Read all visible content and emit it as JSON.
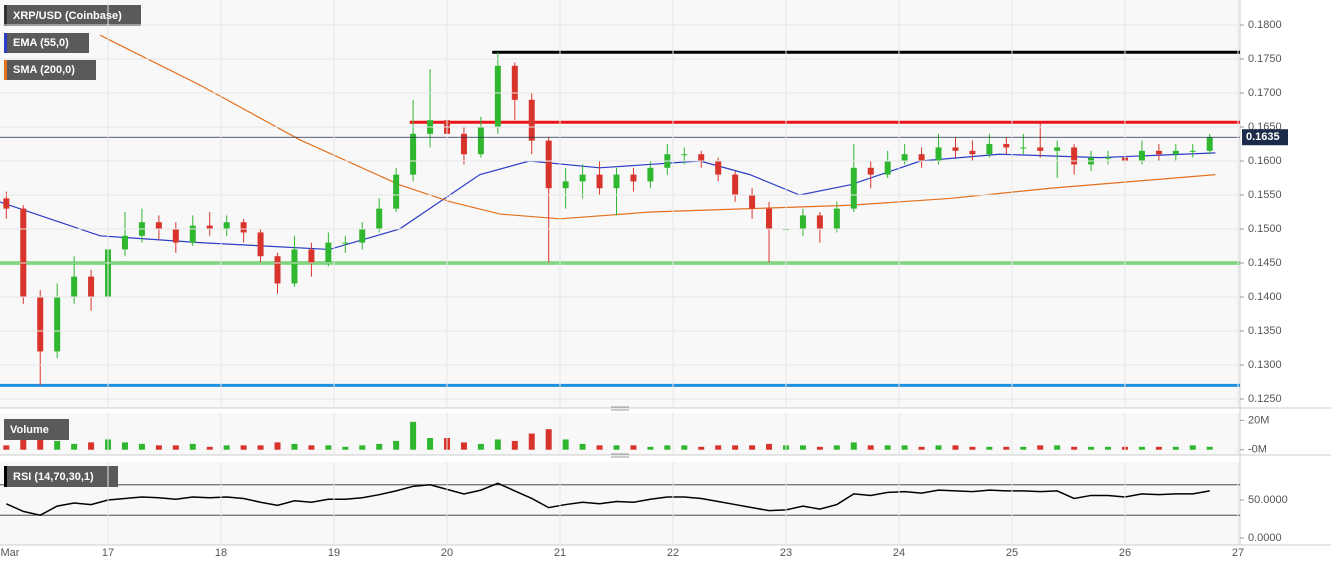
{
  "chart_data": [
    {
      "type": "candlestick",
      "title": "XRP/USD (Coinbase)",
      "x": [
        16.1,
        16.25,
        16.4,
        16.55,
        16.7,
        16.85,
        17.0,
        17.15,
        17.3,
        17.45,
        17.6,
        17.75,
        17.9,
        18.05,
        18.2,
        18.35,
        18.5,
        18.65,
        18.8,
        18.95,
        19.1,
        19.25,
        19.4,
        19.55,
        19.7,
        19.85,
        20.0,
        20.15,
        20.3,
        20.45,
        20.6,
        20.75,
        20.9,
        21.05,
        21.2,
        21.35,
        21.5,
        21.65,
        21.8,
        21.95,
        22.1,
        22.25,
        22.4,
        22.55,
        22.7,
        22.85,
        23.0,
        23.15,
        23.3,
        23.45,
        23.6,
        23.75,
        23.9,
        24.05,
        24.2,
        24.35,
        24.5,
        24.65,
        24.8,
        24.95,
        25.1,
        25.25,
        25.4,
        25.55,
        25.7,
        25.85,
        26.0,
        26.15,
        26.3,
        26.45,
        26.6,
        26.75
      ],
      "open": [
        0.1545,
        0.153,
        0.14,
        0.132,
        0.14,
        0.143,
        0.14,
        0.147,
        0.149,
        0.151,
        0.15,
        0.148,
        0.1505,
        0.15,
        0.151,
        0.1495,
        0.146,
        0.142,
        0.147,
        0.145,
        0.148,
        0.148,
        0.15,
        0.153,
        0.158,
        0.164,
        0.166,
        0.164,
        0.161,
        0.165,
        0.174,
        0.169,
        0.163,
        0.156,
        0.157,
        0.158,
        0.156,
        0.158,
        0.157,
        0.159,
        0.161,
        0.161,
        0.16,
        0.158,
        0.155,
        0.153,
        0.15,
        0.15,
        0.152,
        0.15,
        0.153,
        0.159,
        0.158,
        0.16,
        0.161,
        0.16,
        0.162,
        0.1615,
        0.161,
        0.1625,
        0.162,
        0.162,
        0.1615,
        0.162,
        0.1595,
        0.1605,
        0.1605,
        0.16,
        0.1615,
        0.161,
        0.1615,
        0.1615
      ],
      "high": [
        0.1555,
        0.1535,
        0.141,
        0.142,
        0.146,
        0.144,
        0.149,
        0.1525,
        0.153,
        0.152,
        0.151,
        0.152,
        0.1525,
        0.152,
        0.1515,
        0.15,
        0.1465,
        0.149,
        0.148,
        0.1495,
        0.149,
        0.151,
        0.1545,
        0.159,
        0.169,
        0.1735,
        0.168,
        0.165,
        0.1665,
        0.176,
        0.1745,
        0.17,
        0.1635,
        0.159,
        0.1595,
        0.16,
        0.159,
        0.159,
        0.16,
        0.1625,
        0.162,
        0.1615,
        0.1605,
        0.1585,
        0.156,
        0.154,
        0.1515,
        0.153,
        0.1525,
        0.154,
        0.1625,
        0.16,
        0.1615,
        0.1625,
        0.162,
        0.164,
        0.1635,
        0.163,
        0.164,
        0.1635,
        0.164,
        0.1655,
        0.163,
        0.1625,
        0.1615,
        0.1615,
        0.1612,
        0.163,
        0.1625,
        0.1625,
        0.1625,
        0.164
      ],
      "low": [
        0.1515,
        0.139,
        0.127,
        0.131,
        0.139,
        0.138,
        0.1395,
        0.146,
        0.148,
        0.1485,
        0.1465,
        0.1475,
        0.149,
        0.149,
        0.148,
        0.145,
        0.1405,
        0.1415,
        0.143,
        0.1445,
        0.1465,
        0.147,
        0.1495,
        0.1525,
        0.157,
        0.162,
        0.161,
        0.1595,
        0.1605,
        0.164,
        0.166,
        0.161,
        0.145,
        0.153,
        0.1545,
        0.155,
        0.152,
        0.1555,
        0.156,
        0.158,
        0.1595,
        0.159,
        0.157,
        0.154,
        0.1515,
        0.145,
        0.1485,
        0.149,
        0.148,
        0.1495,
        0.1525,
        0.156,
        0.1575,
        0.1595,
        0.159,
        0.1595,
        0.1605,
        0.16,
        0.1605,
        0.161,
        0.161,
        0.1605,
        0.1575,
        0.158,
        0.1585,
        0.1595,
        0.1585,
        0.1595,
        0.16,
        0.16,
        0.1605,
        0.161
      ],
      "close": [
        0.153,
        0.14,
        0.132,
        0.14,
        0.143,
        0.14,
        0.147,
        0.149,
        0.151,
        0.15,
        0.148,
        0.1505,
        0.15,
        0.151,
        0.1495,
        0.146,
        0.142,
        0.147,
        0.145,
        0.148,
        0.148,
        0.15,
        0.153,
        0.158,
        0.164,
        0.166,
        0.164,
        0.161,
        0.165,
        0.174,
        0.169,
        0.163,
        0.156,
        0.157,
        0.158,
        0.156,
        0.158,
        0.157,
        0.159,
        0.161,
        0.161,
        0.16,
        0.158,
        0.155,
        0.153,
        0.15,
        0.15,
        0.152,
        0.15,
        0.153,
        0.159,
        0.158,
        0.16,
        0.161,
        0.16,
        0.162,
        0.1615,
        0.161,
        0.1625,
        0.162,
        0.162,
        0.1615,
        0.162,
        0.1595,
        0.1605,
        0.1605,
        0.16,
        0.1615,
        0.161,
        0.1615,
        0.1615,
        0.1635
      ],
      "up_color": "#2fb82f",
      "down_color": "#d9342b",
      "series": [
        {
          "name": "EMA (55,0)",
          "color": "#2c3dc6",
          "x": [
            16.04,
            16.93,
            17.81,
            18.96,
            19.58,
            20.29,
            20.73,
            21.35,
            22.24,
            22.68,
            23.12,
            23.57,
            24.19,
            24.89,
            25.78,
            26.8
          ],
          "values": [
            0.154,
            0.149,
            0.148,
            0.147,
            0.15,
            0.158,
            0.16,
            0.159,
            0.16,
            0.158,
            0.155,
            0.1565,
            0.16,
            0.161,
            0.1605,
            0.1612
          ]
        },
        {
          "name": "SMA (200,0)",
          "color": "#e2701e",
          "x": [
            16.93,
            17.81,
            18.7,
            19.58,
            20.03,
            20.47,
            21.0,
            21.8,
            22.68,
            23.57,
            24.45,
            25.34,
            26.8
          ],
          "values": [
            0.1785,
            0.1712,
            0.1631,
            0.1565,
            0.154,
            0.1522,
            0.1515,
            0.1525,
            0.153,
            0.1535,
            0.1545,
            0.156,
            0.158
          ]
        }
      ],
      "levels": [
        {
          "value": 0.176,
          "color": "#000000",
          "from": 20.4
        },
        {
          "value": 0.1657,
          "color": "#e8161b",
          "from": 19.67
        },
        {
          "value": 0.145,
          "color": "#22c322"
        },
        {
          "value": 0.127,
          "color": "#1e90e0"
        }
      ],
      "last_price": {
        "value": 0.1635,
        "label": "0.1635"
      },
      "xlim": [
        16.044,
        27.018
      ],
      "ylim": [
        0.12368,
        0.18368
      ],
      "xticks": [
        {
          "value": 16,
          "label": "Mar"
        },
        17,
        18,
        19,
        20,
        21,
        22,
        23,
        24,
        25,
        26,
        27
      ],
      "yticks": [
        {
          "value": 0.125,
          "label": "0.1250"
        },
        {
          "value": 0.13,
          "label": "0.1300"
        },
        {
          "value": 0.135,
          "label": "0.1350"
        },
        {
          "value": 0.14,
          "label": "0.1400"
        },
        {
          "value": 0.145,
          "label": "0.1450"
        },
        {
          "value": 0.15,
          "label": "0.1500"
        },
        {
          "value": 0.155,
          "label": "0.1550"
        },
        {
          "value": 0.16,
          "label": "0.1600"
        },
        {
          "value": 0.165,
          "label": "0.1650"
        },
        {
          "value": 0.17,
          "label": "0.1700"
        },
        {
          "value": 0.175,
          "label": "0.1750"
        },
        {
          "value": 0.18,
          "label": "0.1800"
        }
      ],
      "grid": true
    },
    {
      "type": "bar",
      "title": "Volume",
      "values": [
        3,
        9,
        12,
        6,
        4,
        5,
        7,
        5,
        4,
        3,
        3,
        4,
        2,
        3,
        3,
        3,
        5,
        4,
        3,
        3,
        2,
        3,
        4,
        6,
        19,
        8,
        8,
        5,
        4,
        7,
        6,
        11,
        14,
        7,
        4,
        3,
        3,
        3,
        2,
        3,
        3,
        2,
        3,
        3,
        3,
        4,
        3,
        3,
        2,
        3,
        5,
        3,
        3,
        3,
        2,
        3,
        3,
        2,
        2,
        2,
        2,
        3,
        3,
        2,
        2,
        2,
        2,
        2,
        2,
        2,
        3,
        2
      ],
      "ylim": [
        -3.57,
        25
      ],
      "yticks": [
        {
          "value": 20,
          "label": "20M"
        },
        {
          "value": 0,
          "label": "-0M"
        }
      ]
    },
    {
      "type": "line",
      "title": "RSI (14,70,30,1)",
      "color": "#000000",
      "values": [
        45,
        35,
        30,
        42,
        46,
        44,
        50,
        52,
        54,
        53,
        51,
        54,
        53,
        54,
        52,
        47,
        43,
        49,
        47,
        51,
        51,
        53,
        57,
        62,
        68,
        70,
        64,
        58,
        63,
        72,
        62,
        52,
        40,
        44,
        47,
        45,
        48,
        47,
        51,
        54,
        54,
        52,
        48,
        44,
        40,
        36,
        37,
        42,
        38,
        44,
        58,
        56,
        60,
        61,
        59,
        63,
        62,
        61,
        63,
        62,
        62,
        61,
        62,
        52,
        56,
        56,
        54,
        58,
        57,
        58,
        58,
        62
      ],
      "levels": [
        70,
        30
      ],
      "ylim": [
        -9.2,
        100
      ],
      "yticks": [
        {
          "value": 50,
          "label": "50.0000"
        },
        {
          "value": 0,
          "label": "0.0000"
        }
      ]
    }
  ]
}
